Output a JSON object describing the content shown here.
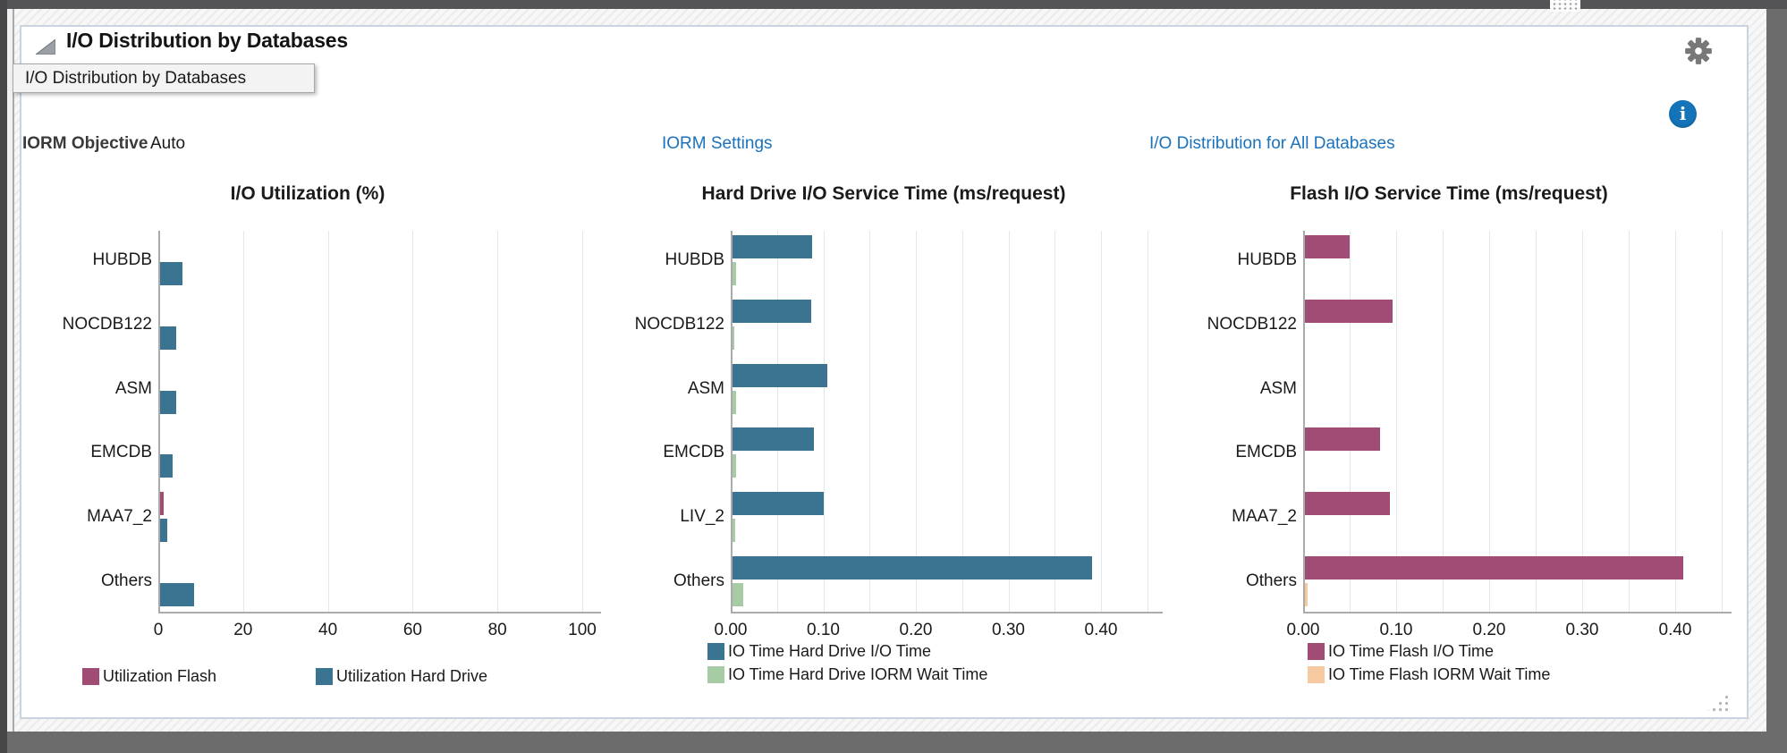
{
  "panel": {
    "title": "I/O Distribution by Databases",
    "tooltip": "I/O Distribution by Databases",
    "iorm": {
      "label": "IORM Objective",
      "value": "Auto"
    },
    "links": {
      "settings": "IORM Settings",
      "distribution": "I/O Distribution for All Databases"
    },
    "icons": {
      "collapse": "triangle-collapse-icon",
      "settings": "gear-icon",
      "info": "info-icon",
      "resize": "resize-grip-icon"
    }
  },
  "colors": {
    "link_blue": "#1a72bc",
    "info_blue": "#1474b9",
    "bar_blue": "#3b7490",
    "bar_magenta": "#a04c74",
    "bar_green": "#a6cba5",
    "bar_peach": "#f7c9a0",
    "axis_gray": "#ababab",
    "gridline": "#e4e7ea",
    "panel_border": "#c9d4df",
    "frame_gray": "#6c6c6c"
  },
  "chart_data": [
    {
      "type": "bar",
      "orientation": "horizontal",
      "title": "I/O Utilization (%)",
      "categories": [
        "HUBDB",
        "NOCDB122",
        "ASM",
        "EMCDB",
        "MAA7_2",
        "Others"
      ],
      "series": [
        {
          "name": "Utilization Flash",
          "color": "#a04c74",
          "values": [
            0,
            0,
            0,
            0,
            0.9,
            0
          ]
        },
        {
          "name": "Utilization Hard Drive",
          "color": "#3b7490",
          "values": [
            5.2,
            3.8,
            3.8,
            3.0,
            1.6,
            8.0
          ]
        }
      ],
      "xlim": [
        0,
        100
      ],
      "xticks": [
        0,
        20,
        40,
        60,
        80,
        100
      ],
      "tick_decimals": 0,
      "grid": "vertical-every-20",
      "legend_position": "bottom-row"
    },
    {
      "type": "bar",
      "orientation": "horizontal",
      "title": "Hard Drive I/O Service Time (ms/request)",
      "categories": [
        "HUBDB",
        "NOCDB122",
        "ASM",
        "EMCDB",
        "LIV_2",
        "Others"
      ],
      "series": [
        {
          "name": "IO Time Hard Drive I/O Time",
          "color": "#3b7490",
          "values": [
            0.086,
            0.085,
            0.102,
            0.088,
            0.099,
            0.388
          ]
        },
        {
          "name": "IO Time Hard Drive IORM Wait Time",
          "color": "#a6cba5",
          "values": [
            0.004,
            0.001,
            0.004,
            0.004,
            0.003,
            0.012
          ]
        }
      ],
      "xlim": [
        0,
        0.45
      ],
      "xticks": [
        0.0,
        0.1,
        0.2,
        0.3,
        0.4
      ],
      "tick_decimals": 2,
      "grid": "vertical-every-0.05",
      "legend_position": "bottom-column"
    },
    {
      "type": "bar",
      "orientation": "horizontal",
      "title": "Flash I/O Service Time (ms/request)",
      "categories": [
        "HUBDB",
        "NOCDB122",
        "ASM",
        "EMCDB",
        "MAA7_2",
        "Others"
      ],
      "series": [
        {
          "name": "IO Time Flash I/O Time",
          "color": "#a04c74",
          "values": [
            0.048,
            0.094,
            0,
            0.081,
            0.091,
            0.407
          ]
        },
        {
          "name": "IO Time Flash IORM Wait Time",
          "color": "#f7c9a0",
          "values": [
            0,
            0,
            0,
            0,
            0,
            0.003
          ]
        }
      ],
      "xlim": [
        0,
        0.45
      ],
      "xticks": [
        0.0,
        0.1,
        0.2,
        0.3,
        0.4
      ],
      "tick_decimals": 2,
      "grid": "vertical-every-0.05",
      "legend_position": "bottom-column"
    }
  ]
}
